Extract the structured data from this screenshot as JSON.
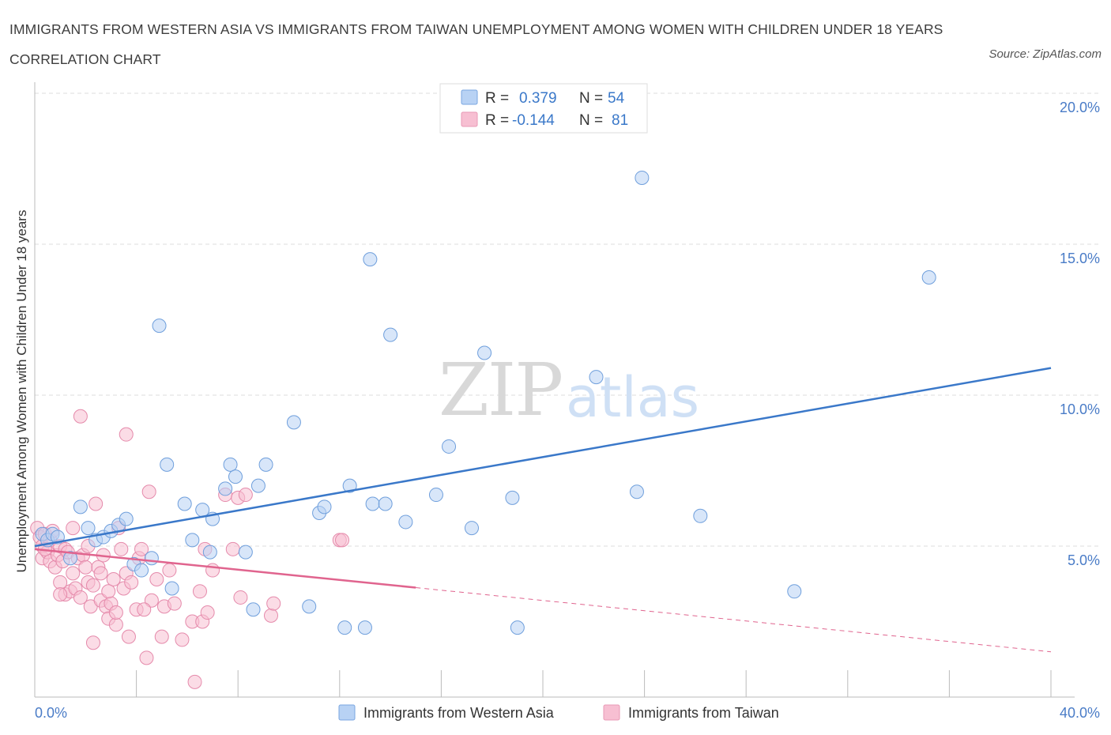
{
  "title": "IMMIGRANTS FROM WESTERN ASIA VS IMMIGRANTS FROM TAIWAN UNEMPLOYMENT AMONG WOMEN WITH CHILDREN UNDER 18 YEARS CORRELATION CHART",
  "source": "Source: ZipAtlas.com",
  "watermark": {
    "zip": "ZIP",
    "atlas": "atlas"
  },
  "colors": {
    "blue": "#3a78c9",
    "pink": "#e0648e",
    "blue_fill": "#b8d2f4",
    "pink_fill": "#f7bfd2",
    "grid": "#dddddd",
    "tick": "#4a7cc7"
  },
  "legend": {
    "rows": [
      {
        "r_label": "R =",
        "r_value": "0.379",
        "n_label": "N =",
        "n_value": "54"
      },
      {
        "r_label": "R =",
        "r_value": "-0.144",
        "n_label": "N =",
        "n_value": "81"
      }
    ]
  },
  "chart_data": {
    "type": "scatter",
    "ylabel": "Unemployment Among Women with Children Under 18 years",
    "xlim": [
      0,
      40
    ],
    "ylim": [
      0,
      20
    ],
    "x_tick_labels": [
      {
        "value": 0,
        "label": "0.0%"
      },
      {
        "value": 40,
        "label": "40.0%"
      }
    ],
    "y_tick_labels": [
      {
        "value": 5,
        "label": "5.0%"
      },
      {
        "value": 10,
        "label": "10.0%"
      },
      {
        "value": 15,
        "label": "15.0%"
      },
      {
        "value": 20,
        "label": "20.0%"
      }
    ],
    "grid": true,
    "legend_position": "top-center",
    "series": [
      {
        "name": "Immigrants from Western Asia",
        "color": "#3a78c9",
        "r": 0.379,
        "n": 54,
        "trend": {
          "x": [
            0,
            40
          ],
          "y": [
            5.0,
            10.9
          ],
          "dashed_from": null
        },
        "points": [
          [
            0.3,
            5.4
          ],
          [
            0.5,
            5.2
          ],
          [
            0.7,
            5.4
          ],
          [
            0.9,
            5.3
          ],
          [
            1.4,
            4.6
          ],
          [
            1.8,
            6.3
          ],
          [
            2.1,
            5.6
          ],
          [
            2.4,
            5.2
          ],
          [
            2.7,
            5.3
          ],
          [
            3.0,
            5.5
          ],
          [
            3.3,
            5.7
          ],
          [
            3.6,
            5.9
          ],
          [
            3.9,
            4.4
          ],
          [
            4.2,
            4.2
          ],
          [
            4.6,
            4.6
          ],
          [
            4.9,
            12.3
          ],
          [
            5.2,
            7.7
          ],
          [
            5.4,
            3.6
          ],
          [
            5.9,
            6.4
          ],
          [
            6.2,
            5.2
          ],
          [
            6.6,
            6.2
          ],
          [
            6.9,
            4.8
          ],
          [
            7.0,
            5.9
          ],
          [
            7.5,
            6.9
          ],
          [
            7.7,
            7.7
          ],
          [
            7.9,
            7.3
          ],
          [
            8.3,
            4.8
          ],
          [
            8.6,
            2.9
          ],
          [
            8.8,
            7.0
          ],
          [
            9.1,
            7.7
          ],
          [
            10.2,
            9.1
          ],
          [
            10.8,
            3.0
          ],
          [
            11.2,
            6.1
          ],
          [
            11.4,
            6.3
          ],
          [
            12.2,
            2.3
          ],
          [
            12.4,
            7.0
          ],
          [
            13.0,
            2.3
          ],
          [
            13.2,
            14.5
          ],
          [
            13.3,
            6.4
          ],
          [
            13.8,
            6.4
          ],
          [
            14.0,
            12.0
          ],
          [
            14.6,
            5.8
          ],
          [
            15.8,
            6.7
          ],
          [
            16.3,
            8.3
          ],
          [
            17.2,
            5.6
          ],
          [
            17.7,
            11.4
          ],
          [
            18.8,
            6.6
          ],
          [
            19.0,
            2.3
          ],
          [
            22.1,
            10.6
          ],
          [
            23.7,
            6.8
          ],
          [
            23.9,
            17.2
          ],
          [
            26.2,
            6.0
          ],
          [
            29.9,
            3.5
          ],
          [
            35.2,
            13.9
          ]
        ]
      },
      {
        "name": "Immigrants from Taiwan",
        "color": "#e0648e",
        "r": -0.144,
        "n": 81,
        "trend": {
          "x": [
            0,
            40
          ],
          "y": [
            4.9,
            1.5
          ],
          "solid_until_x": 15.0
        },
        "points": [
          [
            0.1,
            5.6
          ],
          [
            0.2,
            5.3
          ],
          [
            0.3,
            5.0
          ],
          [
            0.3,
            4.6
          ],
          [
            0.4,
            5.4
          ],
          [
            0.5,
            4.8
          ],
          [
            0.6,
            5.2
          ],
          [
            0.6,
            4.5
          ],
          [
            0.7,
            5.5
          ],
          [
            0.8,
            4.3
          ],
          [
            0.9,
            4.7
          ],
          [
            1.0,
            5.0
          ],
          [
            1.0,
            3.8
          ],
          [
            1.1,
            4.5
          ],
          [
            1.2,
            4.9
          ],
          [
            1.2,
            3.4
          ],
          [
            1.3,
            4.8
          ],
          [
            1.4,
            3.5
          ],
          [
            1.5,
            5.6
          ],
          [
            1.5,
            4.1
          ],
          [
            1.6,
            3.6
          ],
          [
            1.7,
            4.6
          ],
          [
            1.8,
            9.3
          ],
          [
            1.8,
            3.3
          ],
          [
            1.9,
            4.7
          ],
          [
            2.0,
            4.3
          ],
          [
            2.1,
            3.8
          ],
          [
            2.1,
            5.0
          ],
          [
            2.2,
            3.0
          ],
          [
            2.3,
            3.7
          ],
          [
            2.3,
            1.8
          ],
          [
            2.4,
            6.4
          ],
          [
            2.5,
            4.3
          ],
          [
            2.6,
            4.1
          ],
          [
            2.6,
            3.2
          ],
          [
            2.7,
            4.7
          ],
          [
            2.8,
            3.0
          ],
          [
            2.9,
            2.6
          ],
          [
            3.0,
            3.1
          ],
          [
            3.1,
            3.9
          ],
          [
            3.2,
            2.4
          ],
          [
            3.2,
            2.8
          ],
          [
            3.3,
            5.6
          ],
          [
            3.4,
            4.9
          ],
          [
            3.5,
            3.6
          ],
          [
            3.6,
            8.7
          ],
          [
            3.6,
            4.1
          ],
          [
            3.7,
            2.0
          ],
          [
            3.8,
            3.8
          ],
          [
            4.0,
            2.9
          ],
          [
            4.1,
            4.6
          ],
          [
            4.2,
            4.9
          ],
          [
            4.4,
            1.3
          ],
          [
            4.5,
            6.8
          ],
          [
            4.6,
            3.2
          ],
          [
            4.8,
            3.9
          ],
          [
            5.1,
            3.0
          ],
          [
            5.3,
            4.2
          ],
          [
            5.5,
            3.1
          ],
          [
            5.8,
            1.9
          ],
          [
            6.2,
            2.5
          ],
          [
            6.3,
            0.5
          ],
          [
            6.5,
            3.5
          ],
          [
            6.6,
            2.5
          ],
          [
            6.7,
            4.9
          ],
          [
            6.8,
            2.8
          ],
          [
            7.0,
            4.2
          ],
          [
            7.5,
            6.7
          ],
          [
            7.8,
            4.9
          ],
          [
            8.0,
            6.6
          ],
          [
            8.1,
            3.3
          ],
          [
            8.3,
            6.7
          ],
          [
            9.3,
            2.7
          ],
          [
            9.4,
            3.1
          ],
          [
            12.0,
            5.2
          ],
          [
            12.1,
            5.2
          ],
          [
            1.0,
            3.4
          ],
          [
            0.4,
            4.9
          ],
          [
            2.9,
            3.5
          ],
          [
            4.3,
            2.9
          ],
          [
            5.0,
            2.0
          ]
        ]
      }
    ]
  }
}
